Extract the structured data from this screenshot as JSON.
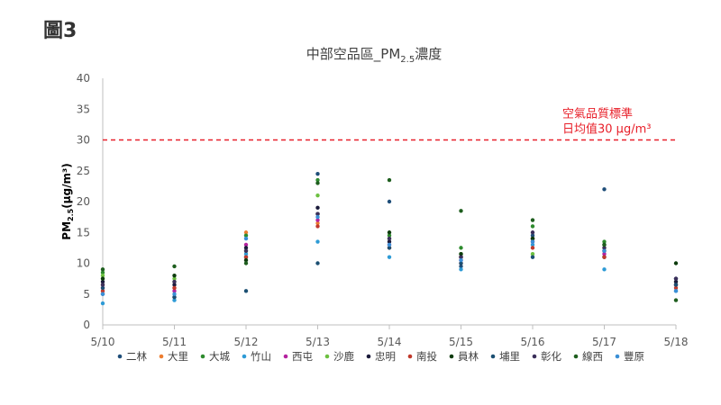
{
  "figure_label": "圖3",
  "chart_data": {
    "type": "scatter",
    "title": "中部空品區_PM",
    "title_sub": "2.5",
    "title_suffix": "濃度",
    "ylabel_main": "PM",
    "ylabel_sub": "2.5",
    "ylabel_unit": "(μg/m³)",
    "ylim": [
      0,
      40
    ],
    "y_ticks": [
      0,
      5,
      10,
      15,
      20,
      25,
      30,
      35,
      40
    ],
    "categories": [
      "5/10",
      "5/11",
      "5/12",
      "5/13",
      "5/14",
      "5/15",
      "5/16",
      "5/17",
      "5/18"
    ],
    "reference_line": {
      "value": 30,
      "label_line1": "空氣品質標準",
      "label_line2": "日均值30 μg/m³",
      "color": "#e8202a"
    },
    "grid": false,
    "legend_position": "bottom",
    "series": [
      {
        "name": "二林",
        "color": "#1f4e79",
        "values": [
          5.0,
          4.5,
          11.0,
          24.5,
          20.0,
          9.5,
          14.5,
          22.0,
          7.5
        ]
      },
      {
        "name": "大里",
        "color": "#ed7d31",
        "values": [
          6.5,
          6.0,
          15.0,
          16.5,
          12.5,
          11.0,
          14.0,
          12.0,
          6.5
        ]
      },
      {
        "name": "大城",
        "color": "#2e8b2e",
        "values": [
          8.5,
          7.0,
          14.5,
          23.5,
          14.5,
          12.5,
          16.0,
          13.5,
          6.5
        ]
      },
      {
        "name": "竹山",
        "color": "#2e9bd6",
        "values": [
          3.5,
          4.0,
          11.5,
          13.5,
          11.0,
          9.0,
          13.0,
          9.0,
          5.5
        ]
      },
      {
        "name": "西屯",
        "color": "#b4229f",
        "values": [
          6.0,
          5.5,
          13.0,
          17.0,
          13.0,
          10.5,
          13.5,
          11.5,
          6.5
        ]
      },
      {
        "name": "沙鹿",
        "color": "#6cc040",
        "values": [
          8.0,
          7.5,
          12.0,
          21.0,
          14.0,
          11.5,
          11.5,
          12.5,
          7.0
        ]
      },
      {
        "name": "忠明",
        "color": "#1a1a3a",
        "values": [
          7.0,
          6.5,
          12.5,
          19.0,
          13.5,
          11.0,
          14.0,
          11.0,
          7.0
        ]
      },
      {
        "name": "南投",
        "color": "#c0392b",
        "values": [
          5.5,
          6.0,
          11.0,
          16.0,
          12.5,
          10.0,
          12.5,
          11.0,
          6.0
        ]
      },
      {
        "name": "員林",
        "color": "#0d3b0d",
        "values": [
          7.5,
          8.0,
          10.5,
          18.0,
          15.0,
          11.5,
          14.0,
          13.0,
          10.0
        ]
      },
      {
        "name": "埔里",
        "color": "#1b4f72",
        "values": [
          6.0,
          4.5,
          5.5,
          10.0,
          12.5,
          10.0,
          11.0,
          12.0,
          6.5
        ]
      },
      {
        "name": "彰化",
        "color": "#3b2f5a",
        "values": [
          6.5,
          7.0,
          12.0,
          18.0,
          14.0,
          11.0,
          15.0,
          12.5,
          7.5
        ]
      },
      {
        "name": "線西",
        "color": "#1e5e1e",
        "values": [
          9.0,
          9.5,
          10.0,
          23.0,
          23.5,
          18.5,
          17.0,
          13.0,
          4.0
        ]
      },
      {
        "name": "豐原",
        "color": "#3a8fd6",
        "values": [
          5.0,
          5.0,
          14.0,
          17.5,
          13.0,
          10.5,
          13.5,
          12.0,
          5.5
        ]
      }
    ]
  }
}
